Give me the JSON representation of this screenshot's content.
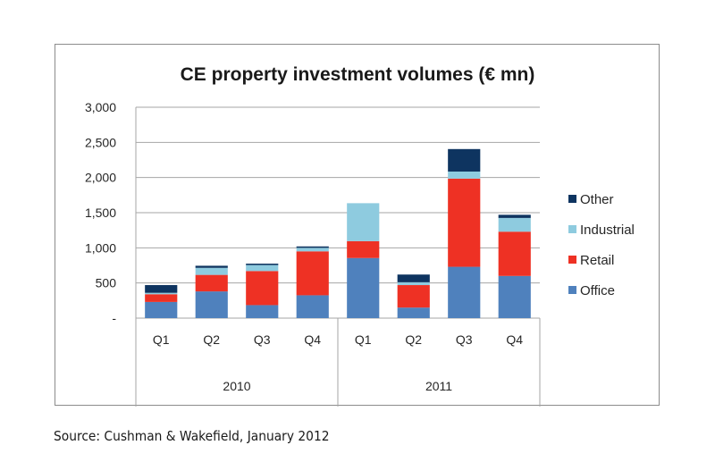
{
  "chart_data": {
    "type": "bar",
    "stacked": true,
    "title": "CE property investment volumes (€ mn)",
    "xlabel": "",
    "ylabel": "",
    "ylim": [
      0,
      3000
    ],
    "yticks": [
      0,
      500,
      1000,
      1500,
      2000,
      2500,
      3000
    ],
    "ytick_labels": [
      "-",
      "500",
      "1,000",
      "1,500",
      "2,000",
      "2,500",
      "3,000"
    ],
    "grid": true,
    "categories": [
      "Q1",
      "Q2",
      "Q3",
      "Q4",
      "Q1",
      "Q2",
      "Q3",
      "Q4"
    ],
    "groups": [
      {
        "label": "2010",
        "categories": [
          "Q1",
          "Q2",
          "Q3",
          "Q4"
        ]
      },
      {
        "label": "2011",
        "categories": [
          "Q1",
          "Q2",
          "Q3",
          "Q4"
        ]
      }
    ],
    "series": [
      {
        "name": "Office",
        "color": "#4f81bd",
        "values": [
          230,
          380,
          185,
          325,
          855,
          150,
          730,
          600
        ]
      },
      {
        "name": "Retail",
        "color": "#ee3124",
        "values": [
          110,
          235,
          485,
          625,
          240,
          320,
          1255,
          630
        ]
      },
      {
        "name": "Industrial",
        "color": "#8ecbdf",
        "values": [
          20,
          100,
          85,
          50,
          540,
          40,
          100,
          195
        ]
      },
      {
        "name": "Other",
        "color": "#0e3460",
        "values": [
          110,
          30,
          20,
          20,
          0,
          110,
          320,
          45
        ]
      }
    ],
    "legend": {
      "placement": "right",
      "entries": [
        "Other",
        "Industrial",
        "Retail",
        "Office"
      ]
    }
  },
  "source": "Source: Cushman & Wakefield, January 2012"
}
